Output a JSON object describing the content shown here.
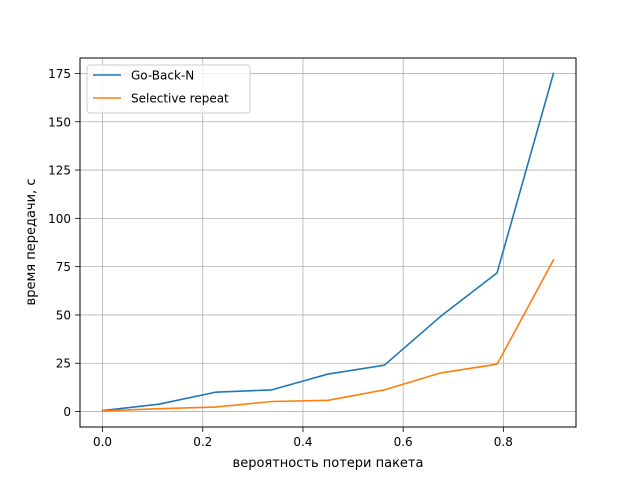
{
  "chart_data": {
    "type": "line",
    "xlabel": "вероятность потери пакета",
    "ylabel": "время передачи, с",
    "xlim": [
      -0.045,
      0.945
    ],
    "ylim": [
      -8.0,
      183.0
    ],
    "xticks": [
      0.0,
      0.2,
      0.4,
      0.6,
      0.8
    ],
    "xtick_labels": [
      "0.0",
      "0.2",
      "0.4",
      "0.6",
      "0.8"
    ],
    "yticks": [
      0,
      25,
      50,
      75,
      100,
      125,
      150,
      175
    ],
    "ytick_labels": [
      "0",
      "25",
      "50",
      "75",
      "100",
      "125",
      "150",
      "175"
    ],
    "grid": true,
    "legend_position": "top-left",
    "x": [
      0.0,
      0.1125,
      0.225,
      0.3375,
      0.45,
      0.5625,
      0.675,
      0.7875,
      0.9
    ],
    "series": [
      {
        "name": "Go-Back-N",
        "color": "#1f77b4",
        "values": [
          0.5,
          3.8,
          10.0,
          11.2,
          19.4,
          24.0,
          49.3,
          71.8,
          175.0
        ]
      },
      {
        "name": "Selective repeat",
        "color": "#ff7f0e",
        "values": [
          0.3,
          1.5,
          2.3,
          5.2,
          5.8,
          11.2,
          20.0,
          24.5,
          78.5
        ]
      }
    ]
  }
}
